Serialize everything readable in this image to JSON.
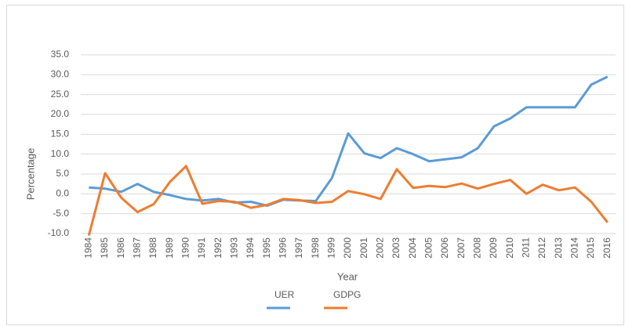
{
  "chart_data": {
    "type": "line",
    "categories": [
      "1984",
      "1985",
      "1986",
      "1987",
      "1988",
      "1989",
      "1990",
      "1991",
      "1992",
      "1993",
      "1994",
      "1995",
      "1996",
      "1997",
      "1998",
      "1999",
      "2000",
      "2001",
      "2002",
      "2003",
      "2004",
      "2005",
      "2006",
      "2007",
      "2008",
      "2009",
      "2010",
      "2011",
      "2012",
      "2013",
      "2014",
      "2015",
      "2016"
    ],
    "series": [
      {
        "name": "UER",
        "color": "#5b9bd5",
        "values": [
          1.6,
          1.3,
          0.5,
          2.5,
          0.5,
          -0.3,
          -1.3,
          -1.7,
          -1.3,
          -2.2,
          -2.0,
          -3.0,
          -1.5,
          -1.7,
          -1.8,
          4.0,
          15.2,
          10.2,
          9.0,
          11.5,
          10.0,
          8.2,
          8.7,
          9.2,
          11.5,
          17.0,
          19.0,
          21.8,
          21.8,
          21.8,
          21.8,
          27.5,
          29.5
        ]
      },
      {
        "name": "GDPG",
        "color": "#ed7d31",
        "values": [
          -10.5,
          5.2,
          -1.0,
          -4.6,
          -2.6,
          3.0,
          7.0,
          -2.5,
          -1.8,
          -2.0,
          -3.5,
          -2.8,
          -1.3,
          -1.6,
          -2.3,
          -2.0,
          0.7,
          -0.1,
          -1.3,
          6.2,
          1.5,
          2.0,
          1.7,
          2.6,
          1.3,
          2.5,
          3.5,
          0.0,
          2.3,
          0.9,
          1.6,
          -2.0,
          -7.2
        ]
      }
    ],
    "xlabel": "Year",
    "ylabel": "Percentage",
    "ylim": [
      -10,
      35
    ],
    "yticks": [
      {
        "value": -10,
        "label": "-10.0"
      },
      {
        "value": -5,
        "label": "-5.0"
      },
      {
        "value": 0,
        "label": "0.0"
      },
      {
        "value": 5,
        "label": "5.0"
      },
      {
        "value": 10,
        "label": "10.0"
      },
      {
        "value": 15,
        "label": "15.0"
      },
      {
        "value": 20,
        "label": "20.0"
      },
      {
        "value": 25,
        "label": "25.0"
      },
      {
        "value": 30,
        "label": "30.0"
      },
      {
        "value": 35,
        "label": "35.0"
      }
    ],
    "grid": true,
    "legend": "bottom"
  }
}
